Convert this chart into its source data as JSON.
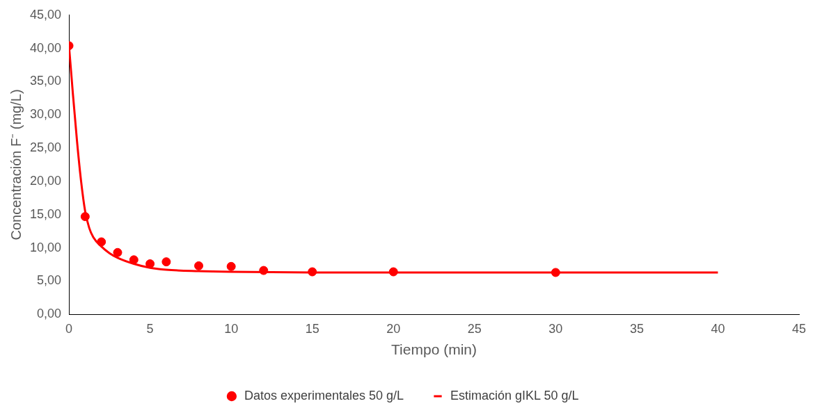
{
  "chart_data": {
    "type": "scatter",
    "xlabel": "Tiempo (min)",
    "ylabel": "Concentración F⁻ (mg/L)",
    "xlim": [
      0,
      45
    ],
    "xticks": [
      0,
      5,
      10,
      15,
      20,
      25,
      30,
      35,
      40,
      45
    ],
    "ylim": [
      0,
      45
    ],
    "yticks": [
      {
        "value": 0,
        "label": "0,00"
      },
      {
        "value": 5,
        "label": "5,00"
      },
      {
        "value": 10,
        "label": "10,00"
      },
      {
        "value": 15,
        "label": "15,00"
      },
      {
        "value": 20,
        "label": "20,00"
      },
      {
        "value": 25,
        "label": "25,00"
      },
      {
        "value": 30,
        "label": "30,00"
      },
      {
        "value": 35,
        "label": "35,00"
      },
      {
        "value": 40,
        "label": "40,00"
      },
      {
        "value": 45,
        "label": "45,00"
      }
    ],
    "legend": "bottom",
    "series": [
      {
        "name": "Datos experimentales 50 g/L",
        "type": "scatter",
        "marker": "circle",
        "color": "#ff0000",
        "x": [
          0,
          1,
          2,
          3,
          4,
          5,
          6,
          8,
          10,
          12,
          15,
          20,
          30
        ],
        "values": [
          40.4,
          14.7,
          10.9,
          9.3,
          8.2,
          7.6,
          7.9,
          7.3,
          7.2,
          6.6,
          6.4,
          6.4,
          6.3
        ]
      },
      {
        "name": "Estimación gIKL 50 g/L",
        "type": "line",
        "marker": "none",
        "color": "#ff0000",
        "x": [
          0,
          0.25,
          0.5,
          0.75,
          1,
          1.25,
          1.5,
          2,
          2.5,
          3,
          4,
          5,
          6,
          8,
          10,
          15,
          20,
          30,
          40
        ],
        "values": [
          40.5,
          33,
          26,
          20,
          15.5,
          13,
          11.6,
          10.2,
          9.2,
          8.5,
          7.6,
          7.0,
          6.7,
          6.5,
          6.4,
          6.3,
          6.3,
          6.3,
          6.3
        ]
      }
    ]
  }
}
